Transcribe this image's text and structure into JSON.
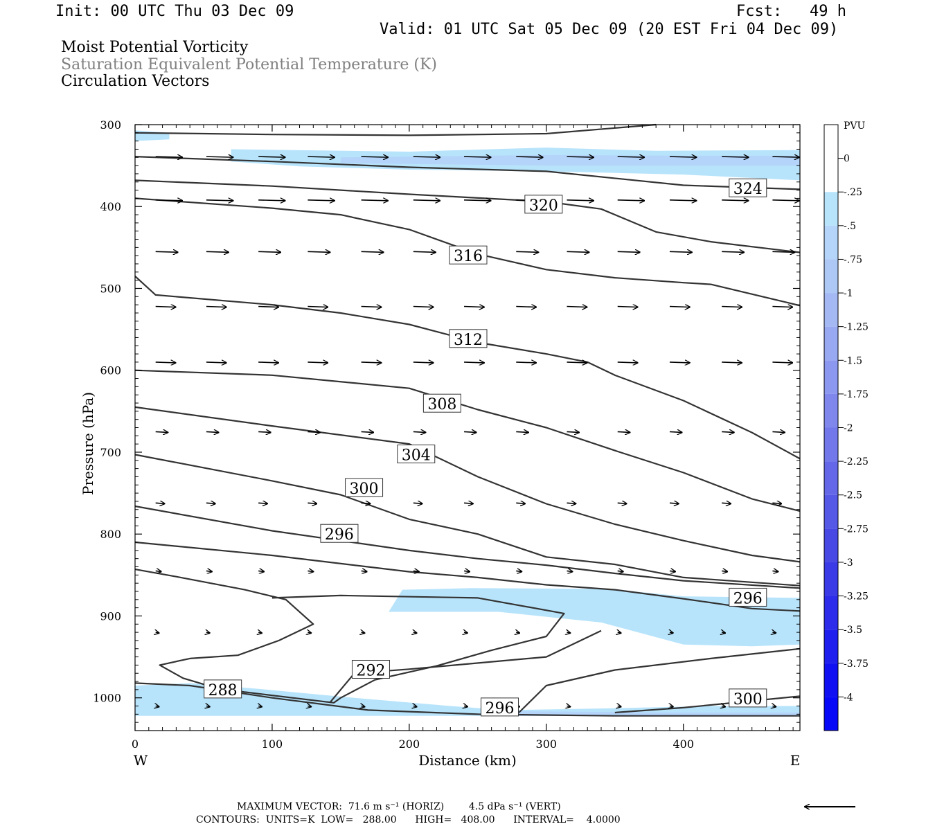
{
  "header": {
    "init": "Init: 00 UTC Thu 03 Dec 09",
    "fcst": "Fcst:   49 h",
    "valid": "Valid: 01 UTC Sat 05 Dec 09 (20 EST Fri 04 Dec 09)"
  },
  "fields": {
    "field1": "Moist Potential Vorticity",
    "field2": "Saturation Equivalent Potential Temperature (K)",
    "field3": "Circulation Vectors",
    "field2_color": "#808080"
  },
  "footer": {
    "max_vector": "MAXIMUM VECTOR:  71.6 m s⁻¹ (HORIZ)        4.5 dPa s⁻¹ (VERT)",
    "contours": "CONTOURS:  UNITS=K  LOW=   288.00      HIGH=   408.00      INTERVAL=    4.0000"
  },
  "colors": {
    "pv_light": "#b8e4fb",
    "pv_mid": "#a8c4f4",
    "contour": "#333333"
  },
  "chart_data": {
    "type": "cross-section",
    "xlabel": "Distance (km)",
    "ylabel": "Pressure (hPa)",
    "xlim": [
      0,
      485
    ],
    "ylim": [
      300,
      1040
    ],
    "x_ticks": [
      0,
      100,
      200,
      300,
      400
    ],
    "y_ticks": [
      300,
      400,
      500,
      600,
      700,
      800,
      900,
      1000
    ],
    "x_end_labels": {
      "left": "W",
      "right": "E"
    },
    "colorbar": {
      "unit": "PVU",
      "levels": [
        "0",
        "-.25",
        "-.5",
        "-.75",
        "-1",
        "-1.25",
        "-1.5",
        "-1.75",
        "-2",
        "-2.25",
        "-2.5",
        "-2.75",
        "-3",
        "-3.25",
        "-3.5",
        "-3.75",
        "-4"
      ],
      "colors": [
        "#ffffff",
        "#ffffff",
        "#b8e4fb",
        "#b4d4fa",
        "#aec8f6",
        "#a4b8f3",
        "#98a8f1",
        "#8c98ef",
        "#7f87ec",
        "#7278ea",
        "#6468e8",
        "#5658e6",
        "#4848e4",
        "#3a3ae6",
        "#2c2cea",
        "#1e1eee",
        "#1010f2",
        "#0808f8"
      ]
    },
    "pv_shading": [
      {
        "level": "-.25",
        "points": [
          [
            0,
            307
          ],
          [
            25,
            310
          ],
          [
            25,
            318
          ],
          [
            0,
            320
          ]
        ]
      },
      {
        "level": "-.25",
        "points": [
          [
            70,
            330
          ],
          [
            200,
            333
          ],
          [
            300,
            328
          ],
          [
            380,
            332
          ],
          [
            485,
            331
          ],
          [
            485,
            368
          ],
          [
            400,
            361
          ],
          [
            300,
            357
          ],
          [
            200,
            355
          ],
          [
            120,
            351
          ],
          [
            70,
            345
          ]
        ]
      },
      {
        "level": "-.5",
        "points": [
          [
            150,
            340
          ],
          [
            300,
            337
          ],
          [
            400,
            338
          ],
          [
            485,
            338
          ],
          [
            485,
            350
          ],
          [
            300,
            350
          ],
          [
            150,
            347
          ]
        ]
      },
      {
        "level": "-.25",
        "points": [
          [
            195,
            868
          ],
          [
            245,
            866
          ],
          [
            345,
            867
          ],
          [
            400,
            876
          ],
          [
            485,
            878
          ],
          [
            485,
            935
          ],
          [
            450,
            937
          ],
          [
            400,
            935
          ],
          [
            340,
            908
          ],
          [
            265,
            895
          ],
          [
            185,
            895
          ]
        ]
      },
      {
        "level": "-.25",
        "points": [
          [
            0,
            985
          ],
          [
            40,
            982
          ],
          [
            90,
            989
          ],
          [
            160,
            1000
          ],
          [
            230,
            1010
          ],
          [
            270,
            1015
          ],
          [
            340,
            1013
          ],
          [
            420,
            1010
          ],
          [
            485,
            1010
          ],
          [
            485,
            1022
          ],
          [
            0,
            1022
          ]
        ]
      },
      {
        "level": "-.5",
        "points": [
          [
            260,
            1016
          ],
          [
            320,
            1017
          ],
          [
            400,
            1018
          ],
          [
            485,
            1018
          ],
          [
            485,
            1022
          ],
          [
            260,
            1022
          ]
        ]
      }
    ],
    "contours": [
      {
        "value": 324,
        "label_at": [
          447,
          378
        ],
        "points": [
          [
            0,
            339
          ],
          [
            100,
            345
          ],
          [
            200,
            352
          ],
          [
            300,
            357
          ],
          [
            400,
            374
          ],
          [
            485,
            379
          ]
        ]
      },
      {
        "value": 324,
        "points": [
          [
            0,
            310
          ],
          [
            100,
            312
          ],
          [
            200,
            313
          ],
          [
            300,
            311
          ],
          [
            380,
            300
          ]
        ]
      },
      {
        "value": 320,
        "label_at": [
          298,
          398
        ],
        "points": [
          [
            0,
            368
          ],
          [
            100,
            375
          ],
          [
            200,
            385
          ],
          [
            300,
            394
          ],
          [
            340,
            403
          ],
          [
            380,
            431
          ],
          [
            420,
            443
          ],
          [
            485,
            456
          ]
        ]
      },
      {
        "value": 316,
        "label_at": [
          243,
          460
        ],
        "points": [
          [
            0,
            390
          ],
          [
            100,
            402
          ],
          [
            150,
            410
          ],
          [
            200,
            428
          ],
          [
            250,
            458
          ],
          [
            300,
            477
          ],
          [
            350,
            487
          ],
          [
            400,
            493
          ],
          [
            420,
            495
          ],
          [
            485,
            521
          ]
        ]
      },
      {
        "value": 312,
        "label_at": [
          243,
          562
        ],
        "points": [
          [
            0,
            485
          ],
          [
            15,
            508
          ],
          [
            100,
            520
          ],
          [
            150,
            530
          ],
          [
            200,
            544
          ],
          [
            250,
            566
          ],
          [
            300,
            580
          ],
          [
            330,
            590
          ],
          [
            350,
            606
          ],
          [
            400,
            637
          ],
          [
            450,
            676
          ],
          [
            485,
            708
          ]
        ]
      },
      {
        "value": 308,
        "label_at": [
          224,
          641
        ],
        "points": [
          [
            0,
            600
          ],
          [
            100,
            606
          ],
          [
            200,
            622
          ],
          [
            250,
            648
          ],
          [
            300,
            670
          ],
          [
            350,
            698
          ],
          [
            400,
            725
          ],
          [
            450,
            757
          ],
          [
            485,
            772
          ]
        ]
      },
      {
        "value": 304,
        "label_at": [
          205,
          703
        ],
        "points": [
          [
            0,
            645
          ],
          [
            100,
            668
          ],
          [
            200,
            690
          ],
          [
            250,
            730
          ],
          [
            300,
            763
          ],
          [
            350,
            788
          ],
          [
            400,
            808
          ],
          [
            450,
            826
          ],
          [
            485,
            834
          ]
        ]
      },
      {
        "value": 300,
        "label_at": [
          167,
          744
        ],
        "points": [
          [
            0,
            703
          ],
          [
            100,
            735
          ],
          [
            150,
            752
          ],
          [
            200,
            782
          ],
          [
            250,
            800
          ],
          [
            300,
            828
          ],
          [
            350,
            837
          ],
          [
            400,
            853
          ],
          [
            485,
            863
          ]
        ]
      },
      {
        "value": 296,
        "label_at": [
          149,
          800
        ],
        "points": [
          [
            0,
            766
          ],
          [
            100,
            796
          ],
          [
            150,
            808
          ],
          [
            200,
            820
          ],
          [
            250,
            830
          ],
          [
            300,
            838
          ],
          [
            350,
            848
          ],
          [
            400,
            857
          ],
          [
            485,
            866
          ]
        ]
      },
      {
        "value": 296,
        "label_at": [
          447,
          878
        ],
        "points": [
          [
            0,
            810
          ],
          [
            100,
            826
          ],
          [
            200,
            846
          ],
          [
            250,
            853
          ],
          [
            300,
            862
          ],
          [
            350,
            868
          ],
          [
            400,
            879
          ],
          [
            450,
            891
          ],
          [
            485,
            894
          ]
        ]
      },
      {
        "value": 292,
        "label_at": [
          172,
          966
        ],
        "points": [
          [
            0,
            843
          ],
          [
            30,
            852
          ],
          [
            80,
            868
          ],
          [
            110,
            880
          ],
          [
            130,
            910
          ],
          [
            105,
            930
          ],
          [
            75,
            948
          ],
          [
            40,
            952
          ],
          [
            18,
            960
          ],
          [
            35,
            976
          ],
          [
            55,
            986
          ],
          [
            80,
            993
          ],
          [
            145,
            1006
          ],
          [
            150,
            1000
          ],
          [
            175,
            978
          ],
          [
            220,
            961
          ],
          [
            260,
            942
          ],
          [
            300,
            925
          ],
          [
            313,
            897
          ],
          [
            250,
            878
          ],
          [
            150,
            875
          ],
          [
            100,
            878
          ]
        ]
      },
      {
        "value": 296,
        "label_at": [
          266,
          1012
        ],
        "points": [
          [
            142,
            1006
          ],
          [
            160,
            970
          ],
          [
            200,
            965
          ],
          [
            300,
            950
          ],
          [
            340,
            918
          ]
        ]
      },
      {
        "value": 300,
        "label_at": [
          447,
          1001
        ],
        "points": [
          [
            280,
            1018
          ],
          [
            300,
            985
          ],
          [
            350,
            966
          ],
          [
            420,
            952
          ],
          [
            485,
            940
          ]
        ]
      },
      {
        "value": 288,
        "label_at": [
          64,
          990
        ],
        "points": [
          [
            0,
            982
          ],
          [
            40,
            985
          ],
          [
            100,
            1000
          ],
          [
            170,
            1015
          ],
          [
            250,
            1020
          ],
          [
            350,
            1022
          ],
          [
            485,
            1022
          ]
        ]
      },
      {
        "value": 300,
        "points": [
          [
            350,
            1018
          ],
          [
            400,
            1012
          ],
          [
            485,
            998
          ]
        ]
      }
    ],
    "contour_labels": [
      "324",
      "320",
      "316",
      "312",
      "308",
      "304",
      "300",
      "296",
      "296",
      "292",
      "296",
      "288",
      "300"
    ],
    "vector_rows": [
      {
        "p": 339,
        "len": 24
      },
      {
        "p": 392,
        "len": 24
      },
      {
        "p": 455,
        "len": 20
      },
      {
        "p": 522,
        "len": 18
      },
      {
        "p": 590,
        "len": 18
      },
      {
        "p": 675,
        "len": 11
      },
      {
        "p": 762,
        "len": 8
      },
      {
        "p": 845,
        "len": 5
      },
      {
        "p": 920,
        "len": 3
      },
      {
        "p": 1010,
        "len": 3
      }
    ],
    "vector_x": [
      15,
      52,
      90,
      126,
      165,
      203,
      240,
      278,
      315,
      352,
      390,
      428,
      465
    ]
  }
}
